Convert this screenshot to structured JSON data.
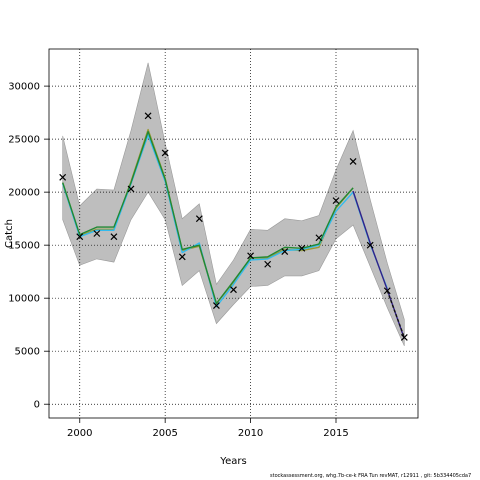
{
  "chart_data": {
    "type": "line",
    "title": "",
    "xlabel": "Years",
    "ylabel": "Catch",
    "xlim": [
      1998.2,
      2019.8
    ],
    "ylim": [
      -1300,
      33500
    ],
    "x_ticks": [
      2000,
      2005,
      2010,
      2015
    ],
    "y_ticks": [
      0,
      5000,
      10000,
      15000,
      20000,
      25000,
      30000
    ],
    "grid": true,
    "grid_style": "dotted",
    "x": [
      1999,
      2000,
      2001,
      2002,
      2003,
      2004,
      2005,
      2006,
      2007,
      2008,
      2009,
      2010,
      2011,
      2012,
      2013,
      2014,
      2015,
      2016,
      2017,
      2018,
      2019
    ],
    "band": {
      "upper": [
        25300,
        18700,
        20300,
        20200,
        25800,
        32200,
        24600,
        17500,
        18900,
        11300,
        13600,
        16500,
        16400,
        17500,
        17300,
        17800,
        22100,
        25800,
        19300,
        13300,
        8000
      ],
      "lower": [
        17400,
        13100,
        13700,
        13400,
        17400,
        20000,
        17400,
        11200,
        12600,
        7600,
        9400,
        11100,
        11200,
        12100,
        12100,
        12600,
        15600,
        16900,
        13000,
        9100,
        5500
      ]
    },
    "observed": [
      21400,
      15800,
      16100,
      15800,
      20300,
      27200,
      23700,
      13900,
      17500,
      9300,
      10800,
      14000,
      13200,
      14400,
      14700,
      15700,
      19200,
      22900,
      15000,
      10700,
      6300
    ],
    "series": [
      {
        "color": "#999933",
        "values": [
          20900,
          15900,
          16500,
          16500,
          21000,
          25900,
          21300,
          14500,
          14900,
          9500,
          11500,
          13800,
          13800,
          14600,
          14500,
          14800,
          18500,
          20400,
          null,
          null,
          null
        ]
      },
      {
        "color": "#33bbee",
        "values": [
          20800,
          15800,
          16400,
          16400,
          20800,
          25400,
          21000,
          14300,
          15200,
          9200,
          11300,
          13600,
          13700,
          14500,
          14600,
          15000,
          18200,
          20000,
          15100,
          10900,
          null
        ]
      },
      {
        "color": "#228833",
        "values": [
          20900,
          16000,
          16700,
          16700,
          20900,
          25700,
          21200,
          14600,
          15000,
          9500,
          11600,
          13800,
          13900,
          14800,
          14700,
          15100,
          18600,
          20400,
          null,
          null,
          null
        ]
      },
      {
        "color": "#332288",
        "values": [
          null,
          null,
          null,
          null,
          null,
          null,
          null,
          null,
          null,
          null,
          null,
          null,
          null,
          null,
          null,
          null,
          null,
          20100,
          15200,
          10800,
          6200
        ]
      },
      {
        "color": "#111111",
        "dashed": true,
        "values": [
          null,
          null,
          null,
          null,
          null,
          null,
          null,
          null,
          null,
          null,
          null,
          null,
          null,
          null,
          null,
          null,
          null,
          null,
          null,
          10700,
          6300
        ]
      }
    ]
  },
  "footer": {
    "text": "stockassessment.org, whg.7b-ce-k  FRA  Tun  revMAT,  r12911 ,  git: 5b334405cda7"
  }
}
